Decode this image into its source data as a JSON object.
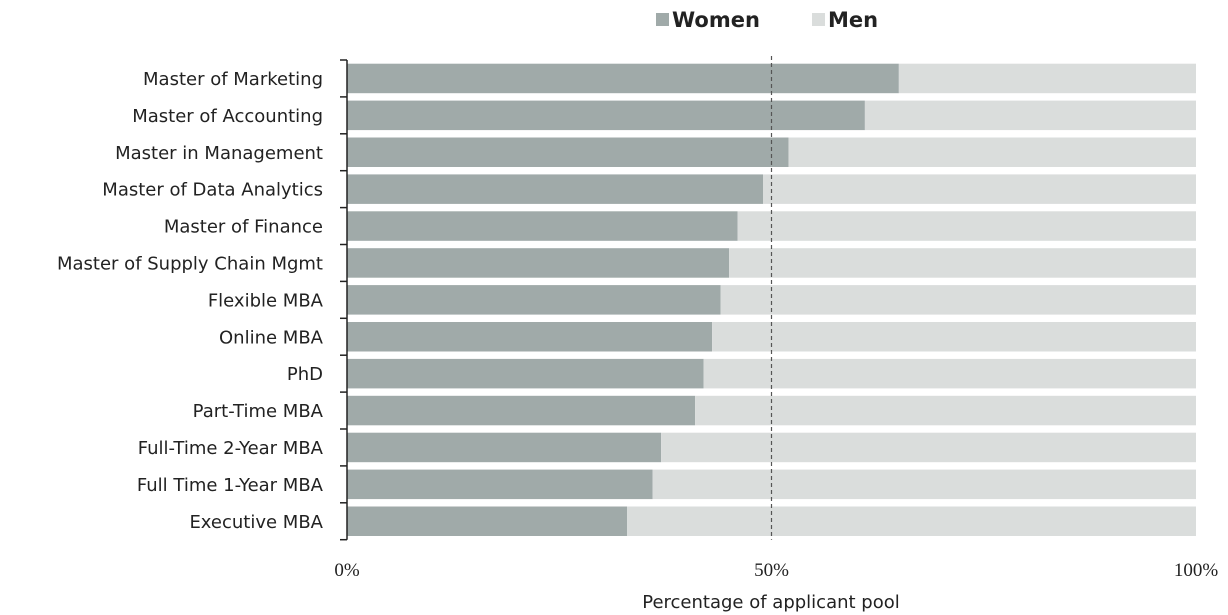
{
  "chart_data": {
    "type": "bar",
    "orientation": "horizontal",
    "stacked": true,
    "categories": [
      "Master of Marketing",
      "Master of Accounting",
      "Master in Management",
      "Master of Data Analytics",
      "Master of Finance",
      "Master of Supply Chain Mgmt",
      "Flexible MBA",
      "Online MBA",
      "PhD",
      "Part-Time MBA",
      "Full-Time  2-Year MBA",
      "Full Time 1-Year MBA",
      "Executive MBA"
    ],
    "series": [
      {
        "name": "Women",
        "values": [
          65,
          61,
          52,
          49,
          46,
          45,
          44,
          43,
          42,
          41,
          37,
          36,
          33
        ]
      },
      {
        "name": "Men",
        "values": [
          35,
          39,
          48,
          51,
          54,
          55,
          56,
          57,
          58,
          59,
          63,
          64,
          67
        ]
      }
    ],
    "colors": {
      "Women": "#a0aaa9",
      "Men": "#dadddc"
    },
    "xlabel": "Percentage of applicant pool",
    "xlim": [
      0,
      100
    ],
    "xticks": [
      0,
      50,
      100
    ],
    "xtick_labels": [
      "0%",
      "50%",
      "100%"
    ],
    "gridlines": [
      50
    ],
    "legend": "top"
  }
}
